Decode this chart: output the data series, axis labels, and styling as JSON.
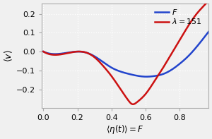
{
  "title": "",
  "xlabel": "$\\langle\\eta(t)\\rangle = F$",
  "ylabel": "$\\langle v\\rangle$",
  "xlim": [
    -0.01,
    0.97
  ],
  "ylim": [
    -0.3,
    0.255
  ],
  "yticks": [
    -0.2,
    -0.1,
    0.0,
    0.1,
    0.2
  ],
  "xticks": [
    0,
    0.2,
    0.4,
    0.6,
    0.8
  ],
  "blue_color": "#2244cc",
  "red_color": "#cc1111",
  "legend_entries": [
    "$F$",
    "$\\lambda = 151$"
  ],
  "bg_color": "#f0f0f0",
  "plot_bg": "#f0f0f0",
  "grid_color": "#ffffff",
  "figsize": [
    3.0,
    1.97
  ],
  "dpi": 100,
  "spine_color": "#aaaaaa",
  "tick_color": "#555555"
}
